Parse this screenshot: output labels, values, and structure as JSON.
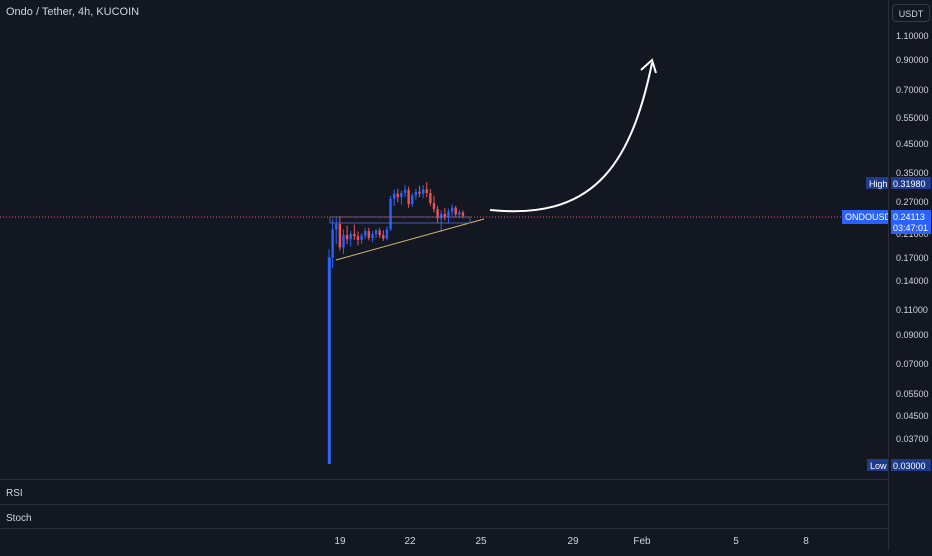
{
  "header": {
    "symbol_title": "Ondo / Tether, 4h, KUCOIN"
  },
  "price_scale": {
    "currency_button": "USDT",
    "ticks": [
      "1.10000",
      "0.90000",
      "0.70000",
      "0.55000",
      "0.45000",
      "0.35000",
      "0.27000",
      "0.17000",
      "0.14000",
      "0.11000",
      "0.09000",
      "0.07000",
      "0.05500",
      "0.04500",
      "0.03700"
    ],
    "high_label": "High",
    "high_value": "0.31980",
    "low_label": "Low",
    "low_value": "0.03000",
    "symbol_label": "ONDOUSDT",
    "last_price": "0.24113",
    "countdown": "03:47:01",
    "partial_tick": "0.21600"
  },
  "panes": {
    "rsi_label": "RSI",
    "stoch_label": "Stoch"
  },
  "time_axis": {
    "labels": [
      "19",
      "22",
      "25",
      "29",
      "Feb",
      "5",
      "8"
    ]
  },
  "colors": {
    "up": "#2962ff",
    "down": "#ef5350",
    "background": "#131722",
    "price_line": "#ef5350",
    "trendline": "#d4b574",
    "arrow": "#ffffff"
  },
  "chart_data": {
    "type": "candlestick",
    "title": "Ondo / Tether, 4h, KUCOIN",
    "scale": "log",
    "ylim": [
      0.028,
      1.3
    ],
    "x_ticks": [
      "19",
      "22",
      "25",
      "29",
      "Feb",
      "5",
      "8"
    ],
    "last_price": 0.24113,
    "high": 0.3198,
    "low": 0.03,
    "candles": [
      {
        "o": 0.03,
        "h": 0.182,
        "l": 0.03,
        "c": 0.17
      },
      {
        "o": 0.17,
        "h": 0.235,
        "l": 0.155,
        "c": 0.215
      },
      {
        "o": 0.215,
        "h": 0.237,
        "l": 0.19,
        "c": 0.225
      },
      {
        "o": 0.225,
        "h": 0.24,
        "l": 0.18,
        "c": 0.185
      },
      {
        "o": 0.185,
        "h": 0.215,
        "l": 0.175,
        "c": 0.205
      },
      {
        "o": 0.205,
        "h": 0.222,
        "l": 0.19,
        "c": 0.198
      },
      {
        "o": 0.198,
        "h": 0.212,
        "l": 0.186,
        "c": 0.207
      },
      {
        "o": 0.207,
        "h": 0.224,
        "l": 0.197,
        "c": 0.203
      },
      {
        "o": 0.203,
        "h": 0.211,
        "l": 0.188,
        "c": 0.197
      },
      {
        "o": 0.197,
        "h": 0.208,
        "l": 0.19,
        "c": 0.204
      },
      {
        "o": 0.204,
        "h": 0.218,
        "l": 0.198,
        "c": 0.212
      },
      {
        "o": 0.212,
        "h": 0.218,
        "l": 0.196,
        "c": 0.2
      },
      {
        "o": 0.2,
        "h": 0.212,
        "l": 0.193,
        "c": 0.207
      },
      {
        "o": 0.207,
        "h": 0.216,
        "l": 0.2,
        "c": 0.213
      },
      {
        "o": 0.213,
        "h": 0.218,
        "l": 0.2,
        "c": 0.205
      },
      {
        "o": 0.205,
        "h": 0.214,
        "l": 0.195,
        "c": 0.199
      },
      {
        "o": 0.199,
        "h": 0.221,
        "l": 0.196,
        "c": 0.215
      },
      {
        "o": 0.215,
        "h": 0.285,
        "l": 0.212,
        "c": 0.278
      },
      {
        "o": 0.278,
        "h": 0.3,
        "l": 0.262,
        "c": 0.29
      },
      {
        "o": 0.29,
        "h": 0.302,
        "l": 0.27,
        "c": 0.282
      },
      {
        "o": 0.282,
        "h": 0.298,
        "l": 0.265,
        "c": 0.292
      },
      {
        "o": 0.292,
        "h": 0.312,
        "l": 0.282,
        "c": 0.3
      },
      {
        "o": 0.3,
        "h": 0.308,
        "l": 0.258,
        "c": 0.266
      },
      {
        "o": 0.266,
        "h": 0.292,
        "l": 0.26,
        "c": 0.286
      },
      {
        "o": 0.286,
        "h": 0.302,
        "l": 0.276,
        "c": 0.295
      },
      {
        "o": 0.295,
        "h": 0.31,
        "l": 0.282,
        "c": 0.29
      },
      {
        "o": 0.29,
        "h": 0.312,
        "l": 0.279,
        "c": 0.301
      },
      {
        "o": 0.301,
        "h": 0.3198,
        "l": 0.282,
        "c": 0.292
      },
      {
        "o": 0.292,
        "h": 0.302,
        "l": 0.262,
        "c": 0.268
      },
      {
        "o": 0.268,
        "h": 0.285,
        "l": 0.248,
        "c": 0.255
      },
      {
        "o": 0.255,
        "h": 0.262,
        "l": 0.228,
        "c": 0.236
      },
      {
        "o": 0.236,
        "h": 0.252,
        "l": 0.21,
        "c": 0.245
      },
      {
        "o": 0.245,
        "h": 0.258,
        "l": 0.232,
        "c": 0.238
      },
      {
        "o": 0.238,
        "h": 0.256,
        "l": 0.226,
        "c": 0.25
      },
      {
        "o": 0.25,
        "h": 0.265,
        "l": 0.24,
        "c": 0.258
      },
      {
        "o": 0.258,
        "h": 0.262,
        "l": 0.238,
        "c": 0.244
      },
      {
        "o": 0.244,
        "h": 0.253,
        "l": 0.237,
        "c": 0.248
      },
      {
        "o": 0.248,
        "h": 0.252,
        "l": 0.236,
        "c": 0.24113
      }
    ]
  }
}
